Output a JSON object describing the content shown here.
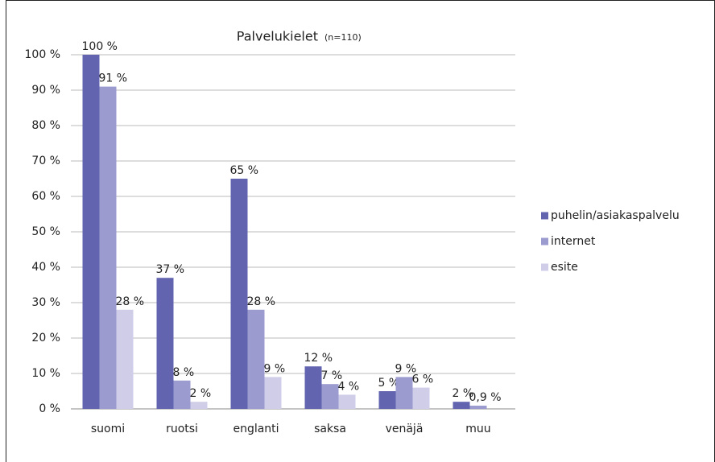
{
  "chart_data": {
    "type": "bar",
    "title": "Palvelukielet",
    "subtitle": "(n=110)",
    "categories": [
      "suomi",
      "ruotsi",
      "englanti",
      "saksa",
      "venäjä",
      "muu"
    ],
    "series": [
      {
        "name": "puhelin/asiakaspalvelu",
        "color": "#6264b0",
        "values": [
          100,
          37,
          65,
          12,
          5,
          2
        ],
        "value_labels": [
          "100 %",
          "37 %",
          "65 %",
          "12 %",
          "5 %",
          "2 %"
        ]
      },
      {
        "name": "internet",
        "color": "#9b9bcf",
        "values": [
          91,
          8,
          28,
          7,
          9,
          0.9
        ],
        "value_labels": [
          "91 %",
          "8 %",
          "28 %",
          "7 %",
          "9 %",
          "0,9 %"
        ]
      },
      {
        "name": "esite",
        "color": "#cfcde8",
        "values": [
          28,
          2,
          9,
          4,
          6,
          null
        ],
        "value_labels": [
          "28 %",
          "2 %",
          "9 %",
          "4 %",
          "6 %",
          null
        ]
      }
    ],
    "ylim": [
      0,
      100
    ],
    "yticks": [
      {
        "value": 0,
        "label": "0 %"
      },
      {
        "value": 10,
        "label": "10 %"
      },
      {
        "value": 20,
        "label": "20 %"
      },
      {
        "value": 30,
        "label": "30 %"
      },
      {
        "value": 40,
        "label": "40 %"
      },
      {
        "value": 50,
        "label": "50 %"
      },
      {
        "value": 60,
        "label": "60 %"
      },
      {
        "value": 70,
        "label": "70 %"
      },
      {
        "value": 80,
        "label": "80 %"
      },
      {
        "value": 90,
        "label": "90 %"
      },
      {
        "value": 100,
        "label": "100 %"
      }
    ],
    "grid": true,
    "legend": "right"
  }
}
